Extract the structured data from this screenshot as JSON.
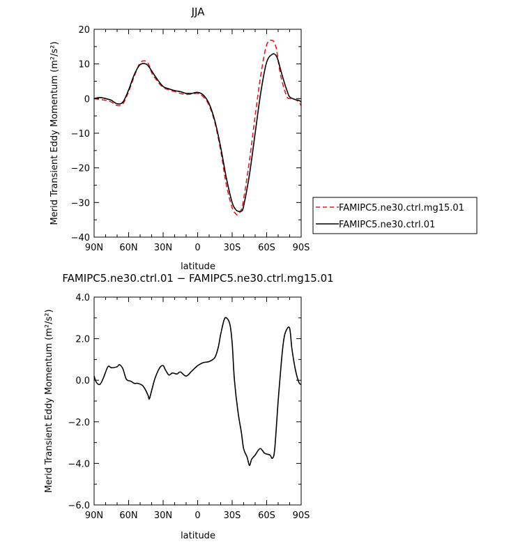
{
  "chart_data": [
    {
      "type": "line",
      "title": "JJA",
      "xlabel": "latitude",
      "ylabel": "Merid Transient Eddy Momentum (m²/s²)",
      "xlim": [
        90,
        -90
      ],
      "ylim": [
        -40,
        20
      ],
      "x_tick_labels": [
        "90N",
        "60N",
        "30N",
        "0",
        "30S",
        "60S",
        "90S"
      ],
      "x_ticks": [
        90,
        60,
        30,
        0,
        -30,
        -60,
        -90
      ],
      "y_ticks": [
        20,
        10,
        0,
        -10,
        -20,
        -30,
        -40
      ],
      "y_tick_labels": [
        "20",
        "10",
        "0",
        "−10",
        "−20",
        "−30",
        "−40"
      ],
      "legend_placement": "right",
      "series": [
        {
          "name": "FAMIPC5.ne30.ctrl.mg15.01",
          "color": "#e41a1c",
          "dash": "dashed",
          "x": [
            90,
            85,
            80,
            75,
            70,
            65,
            60,
            55,
            50,
            45,
            42,
            40,
            35,
            30,
            25,
            20,
            15,
            10,
            5,
            0,
            -5,
            -10,
            -15,
            -20,
            -25,
            -30,
            -33,
            -35,
            -38,
            -40,
            -45,
            -50,
            -55,
            -60,
            -65,
            -68,
            -70,
            -72,
            -75,
            -78,
            -80,
            -85,
            -88,
            -90
          ],
          "y": [
            0,
            -0.3,
            -0.5,
            -1.0,
            -2.0,
            -1.5,
            2.0,
            6.5,
            10.3,
            10.8,
            9.5,
            7.5,
            5.0,
            3.2,
            2.5,
            2.0,
            1.5,
            1.2,
            1.3,
            1.5,
            0.5,
            -2.0,
            -7.0,
            -15.0,
            -25.0,
            -31.5,
            -33.2,
            -33.5,
            -32.0,
            -29.0,
            -18.0,
            -5.0,
            7.0,
            15.5,
            16.8,
            15.0,
            11.0,
            7.0,
            3.0,
            0.3,
            0.0,
            -0.3,
            -1.0,
            -2.0
          ]
        },
        {
          "name": "FAMIPC5.ne30.ctrl.01",
          "color": "#000000",
          "dash": "solid",
          "x": [
            90,
            85,
            80,
            75,
            70,
            65,
            60,
            55,
            50,
            45,
            42,
            40,
            35,
            30,
            25,
            20,
            15,
            10,
            5,
            0,
            -5,
            -10,
            -15,
            -20,
            -25,
            -30,
            -33,
            -35,
            -38,
            -40,
            -45,
            -50,
            -55,
            -60,
            -65,
            -68,
            -70,
            -72,
            -75,
            -78,
            -80,
            -85,
            -88,
            -90
          ],
          "y": [
            0,
            0.3,
            0,
            -0.5,
            -1.5,
            -1.0,
            2.5,
            7.0,
            9.8,
            10.0,
            9.0,
            8.0,
            5.5,
            3.5,
            2.8,
            2.3,
            2.0,
            1.5,
            1.5,
            1.8,
            1.0,
            -1.5,
            -6.5,
            -14.0,
            -23.0,
            -30.0,
            -32.0,
            -32.5,
            -32.5,
            -31.0,
            -22.0,
            -10.0,
            2.0,
            10.5,
            12.8,
            12.5,
            11.0,
            8.5,
            5.0,
            2.0,
            0.5,
            -0.3,
            -0.5,
            -1.0
          ]
        }
      ]
    },
    {
      "type": "line",
      "title": "FAMIPC5.ne30.ctrl.01 − FAMIPC5.ne30.ctrl.mg15.01",
      "xlabel": "latitude",
      "ylabel": "Merid Transient Eddy Momentum (m²/s²)",
      "xlim": [
        90,
        -90
      ],
      "ylim": [
        -6,
        4
      ],
      "x_tick_labels": [
        "90N",
        "60N",
        "30N",
        "0",
        "30S",
        "60S",
        "90S"
      ],
      "x_ticks": [
        90,
        60,
        30,
        0,
        -30,
        -60,
        -90
      ],
      "y_ticks": [
        4,
        2,
        0,
        -2,
        -4,
        -6
      ],
      "y_tick_labels": [
        "4.0",
        "2.0",
        "0.0",
        "−2.0",
        "−4.0",
        "−6.0"
      ],
      "series": [
        {
          "color": "#000000",
          "dash": "solid",
          "x": [
            90,
            88,
            85,
            82,
            78,
            75,
            70,
            68,
            65,
            62,
            58,
            55,
            52,
            48,
            45,
            43,
            42,
            40,
            37,
            33,
            30,
            28,
            25,
            22,
            18,
            15,
            10,
            5,
            0,
            -5,
            -10,
            -15,
            -18,
            -20,
            -23,
            -25,
            -28,
            -30,
            -32,
            -35,
            -38,
            -40,
            -43,
            -45,
            -47,
            -50,
            -53,
            -55,
            -58,
            -60,
            -63,
            -65,
            -67,
            -70,
            -73,
            -75,
            -77,
            -80,
            -82,
            -85,
            -88,
            -90
          ],
          "y": [
            0.2,
            -0.1,
            -0.2,
            0.1,
            0.65,
            0.6,
            0.65,
            0.75,
            0.55,
            0.05,
            -0.05,
            -0.15,
            -0.15,
            -0.25,
            -0.5,
            -0.75,
            -0.9,
            -0.5,
            0.1,
            0.6,
            0.7,
            0.5,
            0.25,
            0.35,
            0.3,
            0.4,
            0.2,
            0.45,
            0.7,
            0.85,
            0.9,
            1.1,
            1.6,
            2.2,
            2.9,
            3.0,
            2.7,
            1.8,
            0.0,
            -1.5,
            -2.5,
            -3.3,
            -3.7,
            -4.1,
            -3.8,
            -3.6,
            -3.35,
            -3.3,
            -3.5,
            -3.55,
            -3.6,
            -3.75,
            -3.3,
            -1.0,
            1.0,
            2.0,
            2.4,
            2.5,
            1.5,
            0.5,
            -0.1,
            -0.2
          ]
        }
      ]
    }
  ]
}
